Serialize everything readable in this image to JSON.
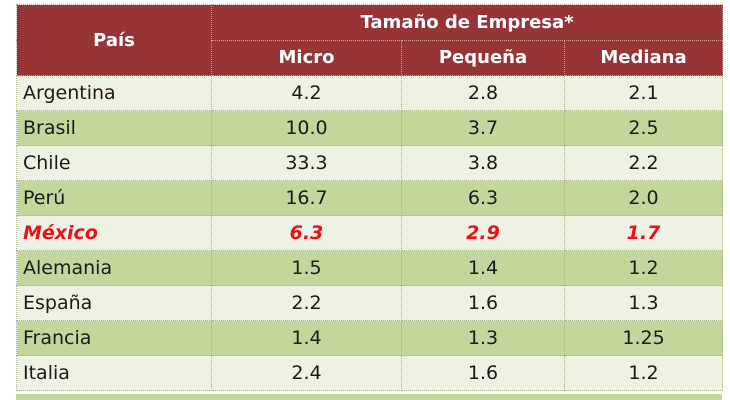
{
  "table": {
    "header": {
      "country": "País",
      "group": "Tamaño de Empresa*",
      "columns": [
        "Micro",
        "Pequeña",
        "Mediana"
      ]
    },
    "rows": [
      {
        "country": "Argentina",
        "micro": "4.2",
        "small": "2.8",
        "medium": "2.1"
      },
      {
        "country": "Brasil",
        "micro": "10.0",
        "small": "3.7",
        "medium": "2.5"
      },
      {
        "country": "Chile",
        "micro": "33.3",
        "small": "3.8",
        "medium": "2.2"
      },
      {
        "country": "Perú",
        "micro": "16.7",
        "small": "6.3",
        "medium": "2.0"
      },
      {
        "country": "México",
        "micro": "6.3",
        "small": "2.9",
        "medium": "1.7"
      },
      {
        "country": "Alemania",
        "micro": "1.5",
        "small": "1.4",
        "medium": "1.2"
      },
      {
        "country": "España",
        "micro": "2.2",
        "small": "1.6",
        "medium": "1.3"
      },
      {
        "country": "Francia",
        "micro": "1.4",
        "small": "1.3",
        "medium": "1.25"
      },
      {
        "country": "Italia",
        "micro": "2.4",
        "small": "1.6",
        "medium": "1.2"
      }
    ],
    "highlight_country": "México",
    "colors": {
      "header_bg": "#973536",
      "row_light": "#eef2e3",
      "row_dark": "#c3d69b",
      "highlight_text": "#e8111d"
    }
  }
}
